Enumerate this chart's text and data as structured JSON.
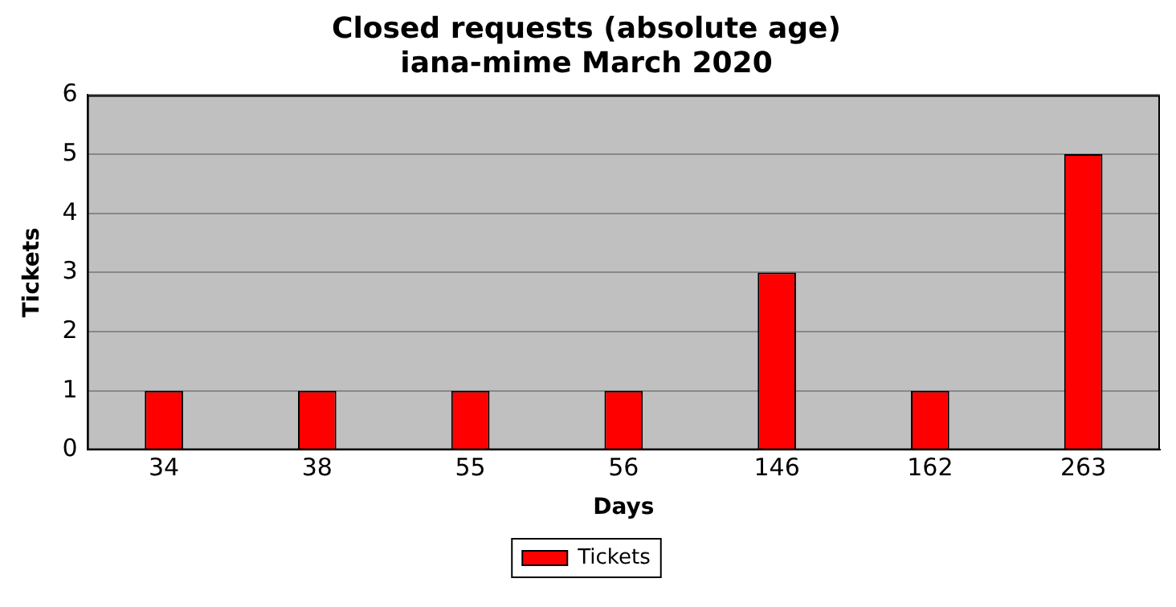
{
  "chart_data": {
    "type": "bar",
    "title": "Closed requests (absolute age)",
    "subtitle": "iana-mime March 2020",
    "xlabel": "Days",
    "ylabel": "Tickets",
    "categories": [
      "34",
      "38",
      "55",
      "56",
      "146",
      "162",
      "263"
    ],
    "series": [
      {
        "name": "Tickets",
        "color": "#ff0000",
        "values": [
          1,
          1,
          1,
          1,
          3,
          1,
          5
        ]
      }
    ],
    "ylim": [
      0,
      6
    ],
    "yticks": [
      0,
      1,
      2,
      3,
      4,
      5,
      6
    ],
    "grid": "y",
    "legend": "bottom"
  }
}
